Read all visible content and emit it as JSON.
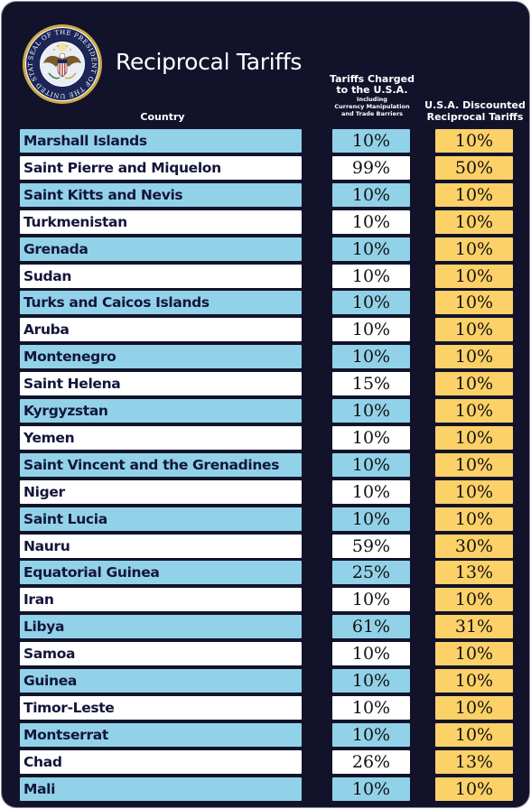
{
  "title": "Reciprocal Tariffs",
  "seal": {
    "text": "SEAL OF THE PRESIDENT OF THE UNITED STATES",
    "colors": {
      "navy": "#1b2556",
      "gold": "#c9a94a"
    }
  },
  "headers": {
    "country": "Country",
    "charged_line1": "Tariffs Charged",
    "charged_line2": "to the U.S.A.",
    "charged_small1": "Including",
    "charged_small2": "Currency Manipulation",
    "charged_small3": "and Trade Barriers",
    "discounted_line1": "U.S.A. Discounted",
    "discounted_line2": "Reciprocal Tariffs"
  },
  "colors": {
    "background": "#12132b",
    "blue_row": "#92d2e8",
    "white_row": "#ffffff",
    "discount_cell": "#fcd168"
  },
  "rows": [
    {
      "country": "Marshall Islands",
      "charged": "10%",
      "discounted": "10%"
    },
    {
      "country": "Saint Pierre and Miquelon",
      "charged": "99%",
      "discounted": "50%"
    },
    {
      "country": "Saint Kitts and Nevis",
      "charged": "10%",
      "discounted": "10%"
    },
    {
      "country": "Turkmenistan",
      "charged": "10%",
      "discounted": "10%"
    },
    {
      "country": "Grenada",
      "charged": "10%",
      "discounted": "10%"
    },
    {
      "country": "Sudan",
      "charged": "10%",
      "discounted": "10%"
    },
    {
      "country": "Turks and Caicos Islands",
      "charged": "10%",
      "discounted": "10%"
    },
    {
      "country": "Aruba",
      "charged": "10%",
      "discounted": "10%"
    },
    {
      "country": "Montenegro",
      "charged": "10%",
      "discounted": "10%"
    },
    {
      "country": "Saint Helena",
      "charged": "15%",
      "discounted": "10%"
    },
    {
      "country": "Kyrgyzstan",
      "charged": "10%",
      "discounted": "10%"
    },
    {
      "country": "Yemen",
      "charged": "10%",
      "discounted": "10%"
    },
    {
      "country": "Saint Vincent and the Grenadines",
      "charged": "10%",
      "discounted": "10%"
    },
    {
      "country": "Niger",
      "charged": "10%",
      "discounted": "10%"
    },
    {
      "country": "Saint Lucia",
      "charged": "10%",
      "discounted": "10%"
    },
    {
      "country": "Nauru",
      "charged": "59%",
      "discounted": "30%"
    },
    {
      "country": "Equatorial Guinea",
      "charged": "25%",
      "discounted": "13%"
    },
    {
      "country": "Iran",
      "charged": "10%",
      "discounted": "10%"
    },
    {
      "country": "Libya",
      "charged": "61%",
      "discounted": "31%"
    },
    {
      "country": "Samoa",
      "charged": "10%",
      "discounted": "10%"
    },
    {
      "country": "Guinea",
      "charged": "10%",
      "discounted": "10%"
    },
    {
      "country": "Timor-Leste",
      "charged": "10%",
      "discounted": "10%"
    },
    {
      "country": "Montserrat",
      "charged": "10%",
      "discounted": "10%"
    },
    {
      "country": "Chad",
      "charged": "26%",
      "discounted": "13%"
    },
    {
      "country": "Mali",
      "charged": "10%",
      "discounted": "10%"
    }
  ]
}
